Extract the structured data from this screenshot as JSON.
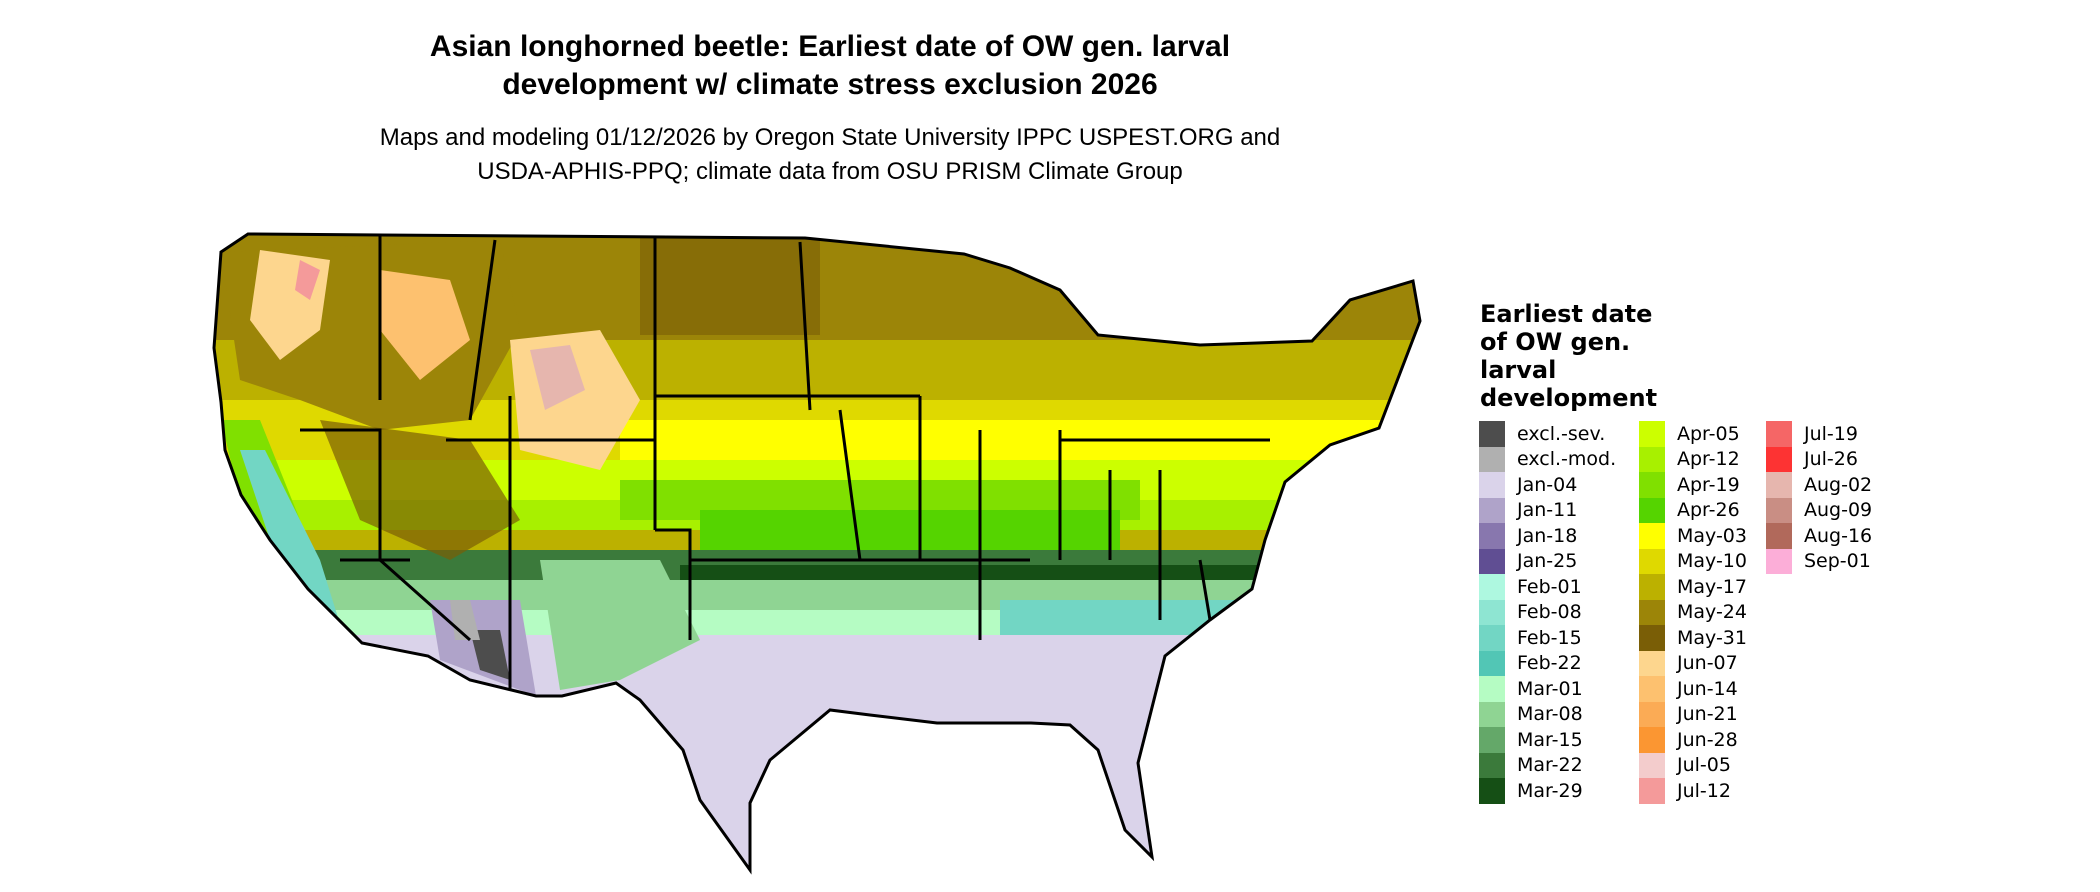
{
  "title": [
    "Asian longhorned beetle: Earliest date of OW gen. larval",
    "development w/ climate stress exclusion 2026"
  ],
  "subtitle": [
    "Maps and modeling 01/12/2026 by Oregon State University IPPC USPEST.ORG and",
    "USDA-APHIS-PPQ; climate data from OSU PRISM Climate Group"
  ],
  "legend": {
    "title": "Earliest date of OW gen. larval development",
    "columns": [
      [
        {
          "label": "excl.-sev.",
          "color": "#4d4d4d"
        },
        {
          "label": "excl.-mod.",
          "color": "#b0b0b0"
        },
        {
          "label": "Jan-04",
          "color": "#dad3ea"
        },
        {
          "label": "Jan-11",
          "color": "#afa3c9"
        },
        {
          "label": "Jan-18",
          "color": "#8877ae"
        },
        {
          "label": "Jan-25",
          "color": "#604e93"
        },
        {
          "label": "Feb-01",
          "color": "#aef8e0"
        },
        {
          "label": "Feb-08",
          "color": "#8ee5d2"
        },
        {
          "label": "Feb-15",
          "color": "#72d6c4"
        },
        {
          "label": "Feb-22",
          "color": "#52c6b5"
        },
        {
          "label": "Mar-01",
          "color": "#b5fcc3"
        },
        {
          "label": "Mar-08",
          "color": "#8fd493"
        },
        {
          "label": "Mar-15",
          "color": "#64a869"
        },
        {
          "label": "Mar-22",
          "color": "#3b7a3b"
        },
        {
          "label": "Mar-29",
          "color": "#154f15"
        }
      ],
      [
        {
          "label": "Apr-05",
          "color": "#ccff00"
        },
        {
          "label": "Apr-12",
          "color": "#a8f000"
        },
        {
          "label": "Apr-19",
          "color": "#80e000"
        },
        {
          "label": "Apr-26",
          "color": "#55d400"
        },
        {
          "label": "May-03",
          "color": "#ffff00"
        },
        {
          "label": "May-10",
          "color": "#dfd900"
        },
        {
          "label": "May-17",
          "color": "#bcb100"
        },
        {
          "label": "May-24",
          "color": "#9c8508"
        },
        {
          "label": "May-31",
          "color": "#7a5e06"
        },
        {
          "label": "Jun-07",
          "color": "#fdd68e"
        },
        {
          "label": "Jun-14",
          "color": "#fdc16f"
        },
        {
          "label": "Jun-21",
          "color": "#fbab55"
        },
        {
          "label": "Jun-28",
          "color": "#fb9632"
        },
        {
          "label": "Jul-05",
          "color": "#f3cccc"
        },
        {
          "label": "Jul-12",
          "color": "#f49a9a"
        }
      ],
      [
        {
          "label": "Jul-19",
          "color": "#f56666"
        },
        {
          "label": "Jul-26",
          "color": "#fd3333"
        },
        {
          "label": "Aug-02",
          "color": "#e6b6ae"
        },
        {
          "label": "Aug-09",
          "color": "#c98e84"
        },
        {
          "label": "Aug-16",
          "color": "#b1695b"
        },
        {
          "label": "Sep-01",
          "color": "#fcaed8"
        }
      ]
    ]
  }
}
